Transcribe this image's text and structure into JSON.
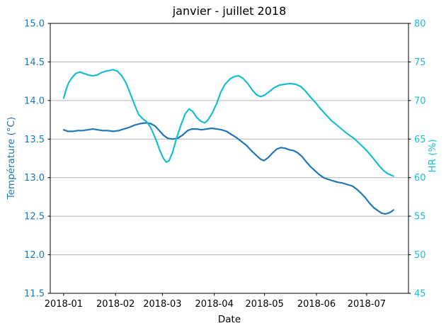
{
  "chart_data": {
    "type": "line",
    "title": "janvier - juillet 2018",
    "xlabel": "Date",
    "x_tick_labels": [
      "2018-01",
      "2018-02",
      "2018-03",
      "2018-04",
      "2018-05",
      "2018-06",
      "2018-07"
    ],
    "x_tick_days": [
      0,
      31,
      59,
      90,
      120,
      151,
      181
    ],
    "xlim_days": [
      -8,
      206
    ],
    "left_axis": {
      "label": "Température (°C)",
      "color": "#1f77b4",
      "lim": [
        11.5,
        15.0
      ],
      "ticks": [
        11.5,
        12.0,
        12.5,
        13.0,
        13.5,
        14.0,
        14.5,
        15.0
      ],
      "tick_label_format": "one_decimal"
    },
    "right_axis": {
      "label": "HR (%)",
      "color": "#17becf",
      "lim": [
        45,
        80
      ],
      "ticks": [
        45,
        50,
        55,
        60,
        65,
        70,
        75,
        80
      ],
      "tick_label_format": "integer"
    },
    "grid": {
      "horizontal": true,
      "vertical": false,
      "color": "#b0b0b0"
    },
    "spine_color": "#000000",
    "background": "#ffffff",
    "series": [
      {
        "id": "temperature",
        "name": "Température (°C)",
        "axis": "left",
        "color": "#1f77b4",
        "line_width": 2.2,
        "days": [
          0,
          2.5,
          5.5,
          8.5,
          11.4,
          14.4,
          17.3,
          20.3,
          23.3,
          26.2,
          29.6,
          33,
          35.9,
          38.9,
          42.3,
          45.7,
          49.1,
          52,
          54.6,
          57.1,
          59.6,
          62.2,
          65.1,
          68.1,
          71,
          74,
          76.5,
          79.5,
          82.5,
          85.4,
          88.4,
          91.4,
          94.3,
          97.3,
          100.2,
          103.2,
          106.2,
          109.1,
          112.1,
          115,
          117.6,
          119.7,
          122.2,
          124.8,
          127.3,
          129.8,
          132.4,
          134.9,
          137.4,
          140,
          142.5,
          145.1,
          147.6,
          150.1,
          152.7,
          155.2,
          157.7,
          160.7,
          163.7,
          166.6,
          169.6,
          172.6,
          175.1,
          177.6,
          180.2,
          182.7,
          185.3,
          187.8,
          189.9,
          192,
          194.1,
          195.8,
          197
        ],
        "values": [
          13.62,
          13.6,
          13.6,
          13.61,
          13.61,
          13.62,
          13.63,
          13.62,
          13.61,
          13.61,
          13.6,
          13.61,
          13.63,
          13.65,
          13.68,
          13.7,
          13.71,
          13.7,
          13.67,
          13.61,
          13.55,
          13.51,
          13.5,
          13.51,
          13.55,
          13.61,
          13.63,
          13.63,
          13.62,
          13.63,
          13.64,
          13.63,
          13.62,
          13.6,
          13.56,
          13.52,
          13.47,
          13.42,
          13.35,
          13.29,
          13.24,
          13.22,
          13.26,
          13.32,
          13.37,
          13.39,
          13.38,
          13.36,
          13.35,
          13.32,
          13.27,
          13.2,
          13.14,
          13.09,
          13.04,
          13.0,
          12.98,
          12.96,
          12.94,
          12.93,
          12.91,
          12.89,
          12.85,
          12.8,
          12.74,
          12.67,
          12.61,
          12.57,
          12.54,
          12.53,
          12.54,
          12.56,
          12.58
        ]
      },
      {
        "id": "hr",
        "name": "HR (%)",
        "axis": "right",
        "color": "#17becf",
        "line_width": 2.2,
        "days": [
          0,
          1.3,
          3,
          5.1,
          7.2,
          9.7,
          12.3,
          14.8,
          17.3,
          19.9,
          22.4,
          25,
          27.5,
          29.6,
          32.1,
          34.7,
          37.2,
          39.8,
          42.3,
          44.8,
          47.4,
          49.9,
          52.4,
          55,
          57.5,
          59.6,
          61.3,
          63,
          65.1,
          67.7,
          70.2,
          72.7,
          74.9,
          77,
          79.5,
          82,
          84.2,
          86.3,
          88.8,
          91.4,
          93.9,
          96.4,
          99.4,
          101.9,
          104.5,
          107,
          110,
          112.9,
          115.5,
          117.6,
          120.1,
          123.1,
          126,
          129,
          131.9,
          135.3,
          138.7,
          141.7,
          144.6,
          147.6,
          150.6,
          153.5,
          156.5,
          159.9,
          163.3,
          166.6,
          170,
          173.4,
          176.8,
          179.7,
          182.7,
          185.7,
          188.6,
          191.2,
          193.7,
          195.8,
          197
        ],
        "values": [
          70.3,
          71.3,
          72.3,
          73.0,
          73.5,
          73.7,
          73.5,
          73.3,
          73.2,
          73.3,
          73.6,
          73.8,
          73.9,
          74.0,
          73.8,
          73.2,
          72.3,
          70.9,
          69.5,
          68.2,
          67.6,
          67.2,
          66.3,
          65.0,
          63.5,
          62.5,
          62.0,
          62.2,
          63.3,
          65.3,
          66.9,
          68.3,
          68.9,
          68.6,
          67.8,
          67.3,
          67.1,
          67.5,
          68.4,
          69.6,
          71.1,
          72.1,
          72.8,
          73.1,
          73.2,
          72.9,
          72.2,
          71.3,
          70.7,
          70.5,
          70.7,
          71.2,
          71.7,
          72.0,
          72.1,
          72.2,
          72.1,
          71.8,
          71.2,
          70.4,
          69.7,
          68.9,
          68.2,
          67.4,
          66.8,
          66.2,
          65.6,
          65.1,
          64.4,
          63.8,
          63.1,
          62.3,
          61.5,
          60.9,
          60.5,
          60.3,
          60.2
        ]
      }
    ]
  }
}
